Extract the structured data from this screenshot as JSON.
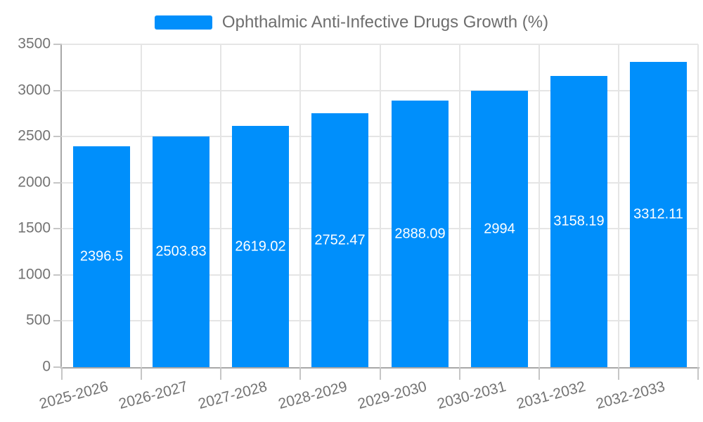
{
  "legend": {
    "label": "Ophthalmic Anti-Infective Drugs Growth (%)"
  },
  "chart_data": {
    "type": "bar",
    "title": "Ophthalmic Anti-Infective Drugs Growth (%)",
    "legend_entries": [
      "Ophthalmic Anti-Infective Drugs Growth (%)"
    ],
    "legend_position": "top-center",
    "categories": [
      "2025-2026",
      "2026-2027",
      "2027-2028",
      "2028-2029",
      "2029-2030",
      "2030-2031",
      "2031-2032",
      "2032-2033"
    ],
    "values": [
      2396.5,
      2503.83,
      2619.02,
      2752.47,
      2888.09,
      2994,
      3158.19,
      3312.11
    ],
    "value_labels_shown_inside_bars": true,
    "xlabel": "",
    "ylabel": "",
    "ylim": [
      0,
      3500
    ],
    "ytick_step": 500,
    "yticks": [
      0,
      500,
      1000,
      1500,
      2000,
      2500,
      3000,
      3500
    ],
    "grid": "on",
    "colors": {
      "bar": "#008FFB",
      "bar_value_text": "#ffffff",
      "grid": "#e5e5e5",
      "axis": "#a8a8a8",
      "tick": "#c6c6c6",
      "axis_text": "#737373",
      "legend_text": "#6e6e6e"
    }
  }
}
